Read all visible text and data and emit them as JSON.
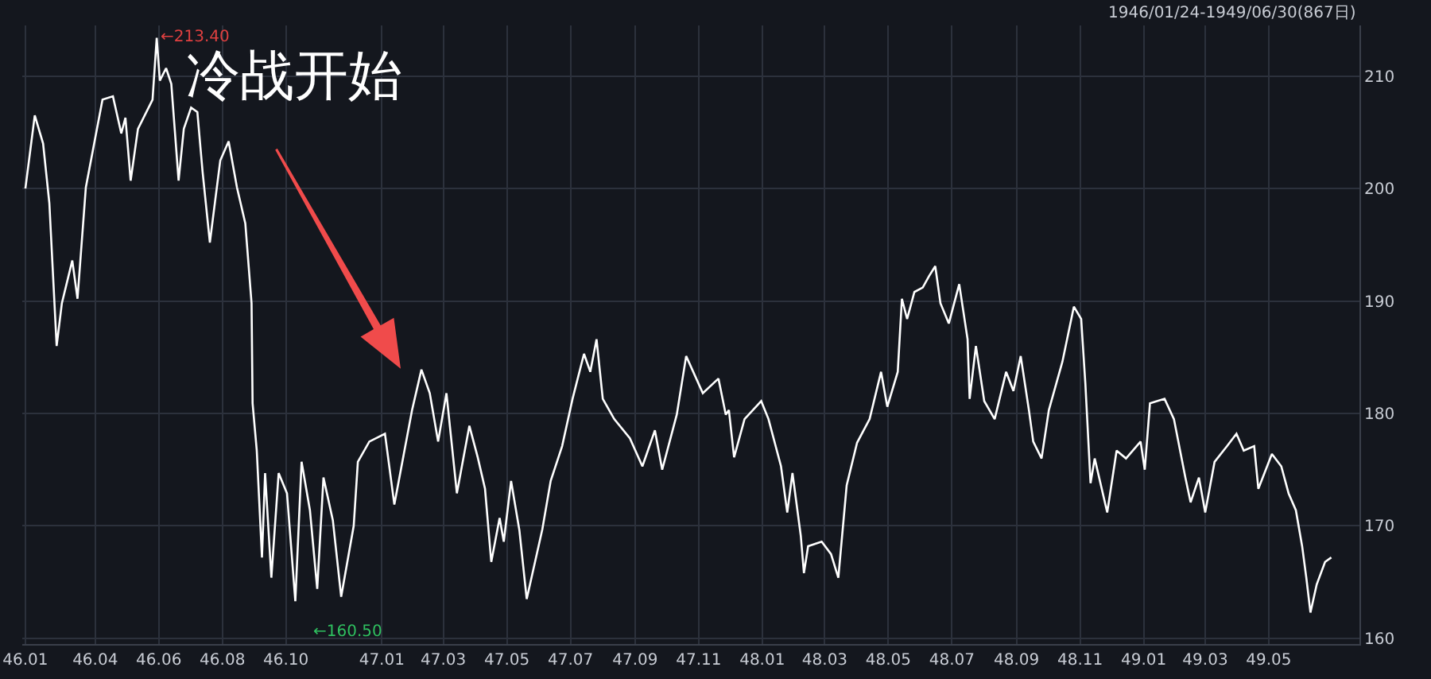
{
  "chart_data": {
    "type": "line",
    "annotations": [
      "1946/01/24-1949/06/30(867日)",
      {
        "text": "←213.40",
        "x": "1946-05-30",
        "y": 213.4
      },
      "←160.50",
      "冷战开始"
    ],
    "x": [
      "1946-01-24",
      "1946-02-02",
      "1946-02-10",
      "1946-02-16",
      "1946-02-23",
      "1946-02-28",
      "1946-03-10",
      "1946-03-15",
      "1946-03-23",
      "1946-04-08",
      "1946-04-18",
      "1946-04-26",
      "1946-04-30",
      "1946-05-05",
      "1946-05-12",
      "1946-05-26",
      "1946-05-30",
      "1946-06-02",
      "1946-06-08",
      "1946-06-13",
      "1946-06-20",
      "1946-06-25",
      "1946-07-02",
      "1946-07-08",
      "1946-07-13",
      "1946-07-20",
      "1946-07-30",
      "1946-08-07",
      "1946-08-15",
      "1946-08-23",
      "1946-08-29",
      "1946-08-30",
      "1946-09-03",
      "1946-09-08",
      "1946-09-11",
      "1946-09-17",
      "1946-09-24",
      "1946-10-02",
      "1946-10-10",
      "1946-10-16",
      "1946-10-24",
      "1946-10-31",
      "1946-11-06",
      "1946-11-15",
      "1946-11-23",
      "1946-12-05",
      "1946-12-09",
      "1946-12-20",
      "1947-01-04",
      "1947-01-13",
      "1947-01-30",
      "1947-02-08",
      "1947-02-16",
      "1947-02-24",
      "1947-03-04",
      "1947-03-14",
      "1947-03-26",
      "1947-04-03",
      "1947-04-10",
      "1947-04-16",
      "1947-04-24",
      "1947-04-28",
      "1947-05-05",
      "1947-05-13",
      "1947-05-20",
      "1947-06-04",
      "1947-06-12",
      "1947-06-23",
      "1947-07-03",
      "1947-07-14",
      "1947-07-20",
      "1947-07-26",
      "1947-08-01",
      "1947-08-12",
      "1947-08-27",
      "1947-09-08",
      "1947-09-20",
      "1947-09-27",
      "1947-10-11",
      "1947-10-20",
      "1947-11-05",
      "1947-11-20",
      "1947-11-27",
      "1947-11-30",
      "1947-12-05",
      "1947-12-15",
      "1947-12-31",
      "1948-01-07",
      "1948-01-19",
      "1948-01-25",
      "1948-01-30",
      "1948-02-07",
      "1948-02-10",
      "1948-02-14",
      "1948-02-27",
      "1948-03-07",
      "1948-03-14",
      "1948-03-22",
      "1948-04-01",
      "1948-04-13",
      "1948-04-24",
      "1948-04-30",
      "1948-05-10",
      "1948-05-14",
      "1948-05-19",
      "1948-05-26",
      "1948-06-03",
      "1948-06-09",
      "1948-06-15",
      "1948-06-20",
      "1948-06-28",
      "1948-07-08",
      "1948-07-16",
      "1948-07-18",
      "1948-07-24",
      "1948-08-01",
      "1948-08-11",
      "1948-08-22",
      "1948-08-29",
      "1948-09-05",
      "1948-09-13",
      "1948-09-17",
      "1948-09-25",
      "1948-10-02",
      "1948-10-15",
      "1948-10-26",
      "1948-11-02",
      "1948-11-06",
      "1948-11-11",
      "1948-11-15",
      "1948-11-27",
      "1948-12-06",
      "1948-12-15",
      "1948-12-29",
      "1949-01-02",
      "1949-01-07",
      "1949-01-21",
      "1949-01-30",
      "1949-02-10",
      "1949-02-15",
      "1949-02-23",
      "1949-03-01",
      "1949-03-10",
      "1949-03-22",
      "1949-03-31",
      "1949-04-07",
      "1949-04-17",
      "1949-04-21",
      "1949-05-04",
      "1949-05-13",
      "1949-05-20",
      "1949-05-27",
      "1949-06-02",
      "1949-06-06",
      "1949-06-10",
      "1949-06-16",
      "1949-06-24",
      "1949-06-30"
    ],
    "series": [
      {
        "color": "#ffffff",
        "values": [
          200,
          206.5,
          204,
          198.7,
          186,
          189.8,
          193.6,
          190.2,
          200.1,
          207.9,
          208.2,
          204.9,
          206.3,
          200.7,
          205.3,
          207.9,
          213.4,
          209.6,
          210.7,
          209.3,
          200.7,
          205.3,
          207.2,
          206.8,
          201.5,
          195.2,
          202.5,
          204.2,
          200.1,
          196.9,
          189.8,
          180.9,
          176.7,
          167.2,
          174.7,
          165.4,
          174.7,
          172.9,
          163.3,
          175.7,
          171.4,
          164.4,
          174.3,
          170.5,
          163.7,
          170,
          175.7,
          177.5,
          178.2,
          171.9,
          180.3,
          183.9,
          181.8,
          177.5,
          181.8,
          172.9,
          178.9,
          176.1,
          173.3,
          166.8,
          170.7,
          168.6,
          174,
          169.6,
          163.5,
          169.7,
          174,
          177.1,
          181.3,
          185.3,
          183.7,
          186.6,
          181.3,
          179.5,
          177.8,
          175.3,
          178.5,
          175,
          179.9,
          185.1,
          181.8,
          183.1,
          179.9,
          180.3,
          176.1,
          179.5,
          181.1,
          179.5,
          175.3,
          171.2,
          174.7,
          169.1,
          165.8,
          168.2,
          168.6,
          167.5,
          165.4,
          173.6,
          177.4,
          179.5,
          183.7,
          180.6,
          183.7,
          190.2,
          188.4,
          190.8,
          191.2,
          192.2,
          193.1,
          189.8,
          188,
          191.5,
          186.6,
          181.3,
          186,
          181.1,
          179.5,
          183.7,
          182,
          185.1,
          180.2,
          177.5,
          176,
          180.3,
          184.6,
          189.5,
          188.4,
          182.7,
          173.8,
          176,
          171.2,
          176.7,
          176,
          177.5,
          175,
          180.9,
          181.3,
          179.5,
          174.3,
          172.1,
          174.3,
          171.2,
          175.7,
          177.1,
          178.2,
          176.7,
          177.1,
          173.3,
          176.4,
          175.3,
          172.9,
          171.4,
          168.2,
          165.4,
          162.3,
          164.8,
          166.8,
          167.2
        ]
      }
    ],
    "xlim": [
      "1946-01-21",
      "1949-07-27"
    ],
    "xticks": [
      {
        "value": "1946-01-24",
        "label": "46.01"
      },
      {
        "value": "1946-04-01",
        "label": "46.04"
      },
      {
        "value": "1946-06-01",
        "label": "46.06"
      },
      {
        "value": "1946-08-01",
        "label": "46.08"
      },
      {
        "value": "1946-10-01",
        "label": "46.10"
      },
      {
        "value": "1947-01-01",
        "label": "47.01"
      },
      {
        "value": "1947-03-01",
        "label": "47.03"
      },
      {
        "value": "1947-05-01",
        "label": "47.05"
      },
      {
        "value": "1947-07-01",
        "label": "47.07"
      },
      {
        "value": "1947-09-01",
        "label": "47.09"
      },
      {
        "value": "1947-11-01",
        "label": "47.11"
      },
      {
        "value": "1948-01-01",
        "label": "48.01"
      },
      {
        "value": "1948-03-01",
        "label": "48.03"
      },
      {
        "value": "1948-05-01",
        "label": "48.05"
      },
      {
        "value": "1948-07-01",
        "label": "48.07"
      },
      {
        "value": "1948-09-01",
        "label": "48.09"
      },
      {
        "value": "1948-11-01",
        "label": "48.11"
      },
      {
        "value": "1949-01-01",
        "label": "49.01"
      },
      {
        "value": "1949-03-01",
        "label": "49.03"
      },
      {
        "value": "1949-05-01",
        "label": "49.05"
      }
    ],
    "ylim": [
      159.5,
      214.5
    ],
    "yticks": [
      160,
      170,
      180,
      190,
      200,
      210
    ],
    "grid": true,
    "marker": "none",
    "line_style": "solid"
  }
}
